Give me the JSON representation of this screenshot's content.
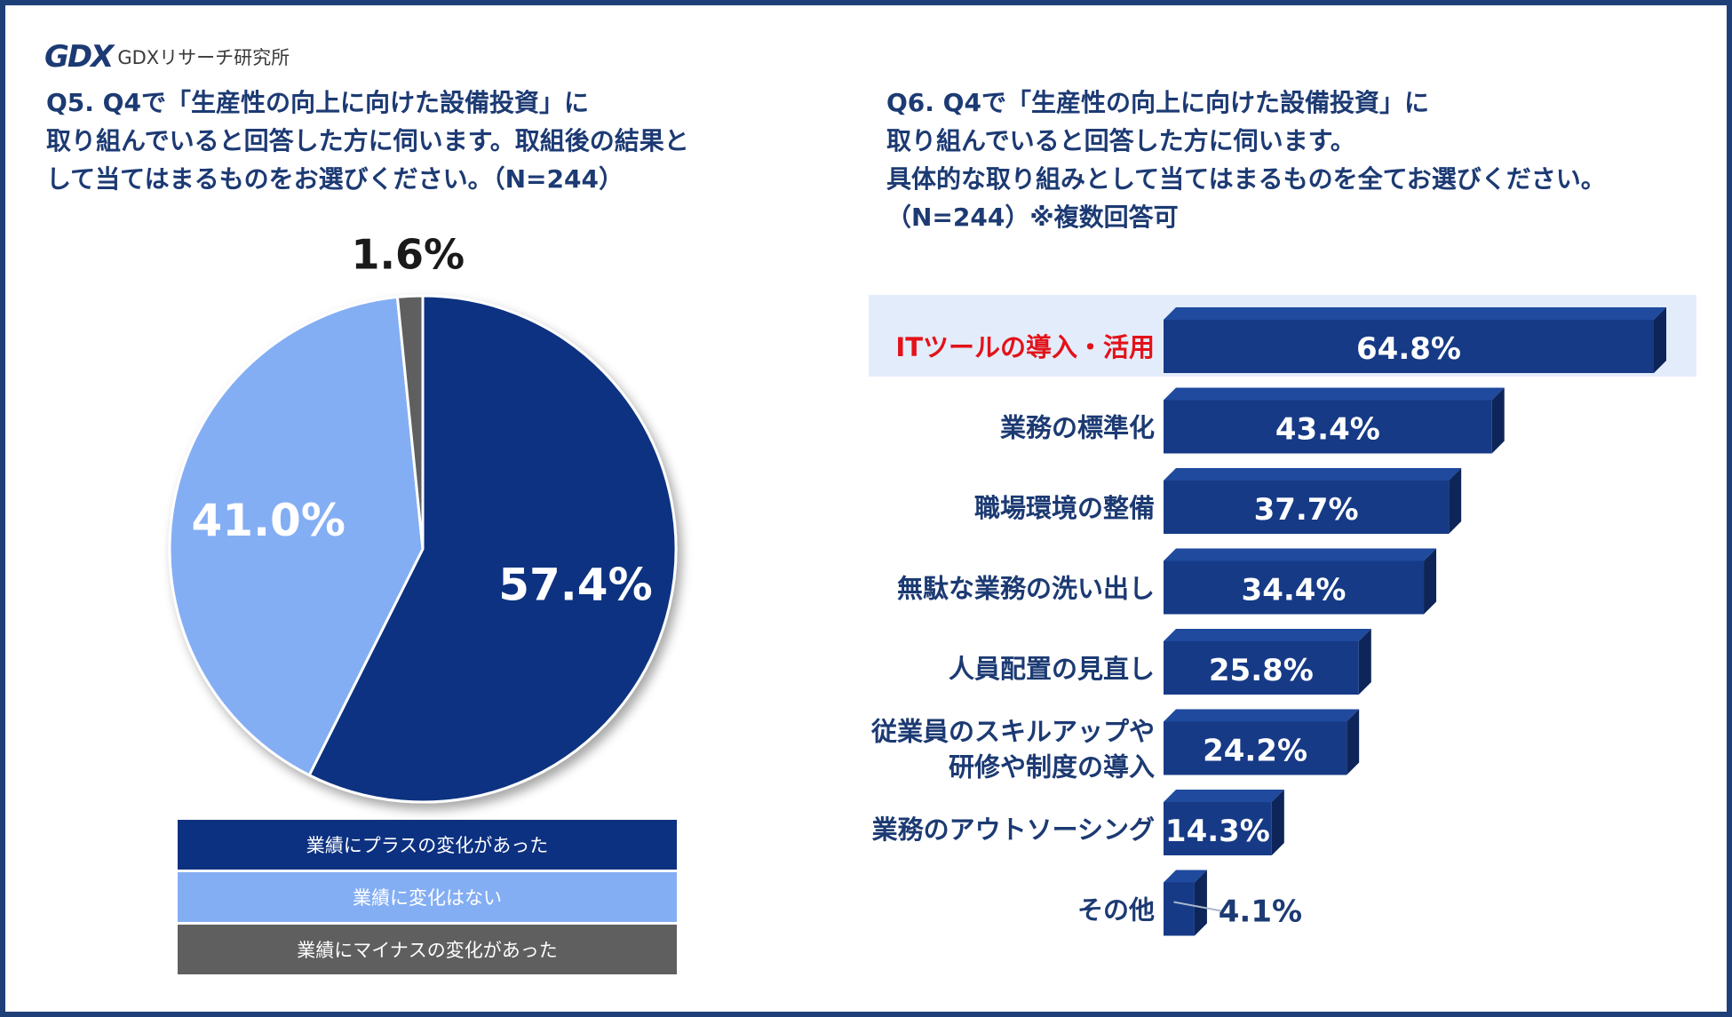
{
  "logo": {
    "mark": "GDX",
    "name": "GDXリサーチ研究所"
  },
  "q5": {
    "lines": [
      "Q5. Q4で「生産性の向上に向けた設備投資」に",
      "取り組んでいると回答した方に伺います。取組後の結果と",
      "して当てはまるものをお選びください。（N=244）"
    ]
  },
  "q6": {
    "lines": [
      "Q6. Q4で「生産性の向上に向けた設備投資」に",
      "取り組んでいると回答した方に伺います。",
      "具体的な取り組みとして当てはまるものを全てお選びください。",
      "（N=244）※複数回答可"
    ]
  },
  "colors": {
    "title": "#1c3a73",
    "dark_blue": "#0d3181",
    "light_blue": "#84aef3",
    "gray": "#5f5f5f",
    "bar_front": "#163a86",
    "bar_top": "#1f4a9e",
    "bar_side": "#0d2558",
    "highlight_bg": "#e3ecfa",
    "highlight_text": "#e3121a",
    "label_text": "#1c3a73"
  },
  "chart_data": [
    {
      "type": "pie",
      "title": "",
      "slices": [
        {
          "label": "業績にプラスの変化があった",
          "value": 57.4,
          "display": "57.4%",
          "color": "#0d3181"
        },
        {
          "label": "業績に変化はない",
          "value": 41.0,
          "display": "41.0%",
          "color": "#84aef3"
        },
        {
          "label": "業績にマイナスの変化があった",
          "value": 1.6,
          "display": "1.6%",
          "color": "#5f5f5f"
        }
      ],
      "legend": "bottom"
    },
    {
      "type": "bar",
      "orientation": "horizontal",
      "title": "",
      "categories": [
        [
          "ITツールの導入・活用"
        ],
        [
          "業務の標準化"
        ],
        [
          "職場環境の整備"
        ],
        [
          "無駄な業務の洗い出し"
        ],
        [
          "人員配置の見直し"
        ],
        [
          "従業員のスキルアップや",
          "研修や制度の導入"
        ],
        [
          "業務のアウトソーシング"
        ],
        [
          "その他"
        ]
      ],
      "values": [
        64.8,
        43.4,
        37.7,
        34.4,
        25.8,
        24.2,
        14.3,
        4.1
      ],
      "value_labels": [
        "64.8%",
        "43.4%",
        "37.7%",
        "34.4%",
        "25.8%",
        "24.2%",
        "14.3%",
        "4.1%"
      ],
      "highlight_index": 0,
      "xlim": [
        0,
        100
      ]
    }
  ]
}
